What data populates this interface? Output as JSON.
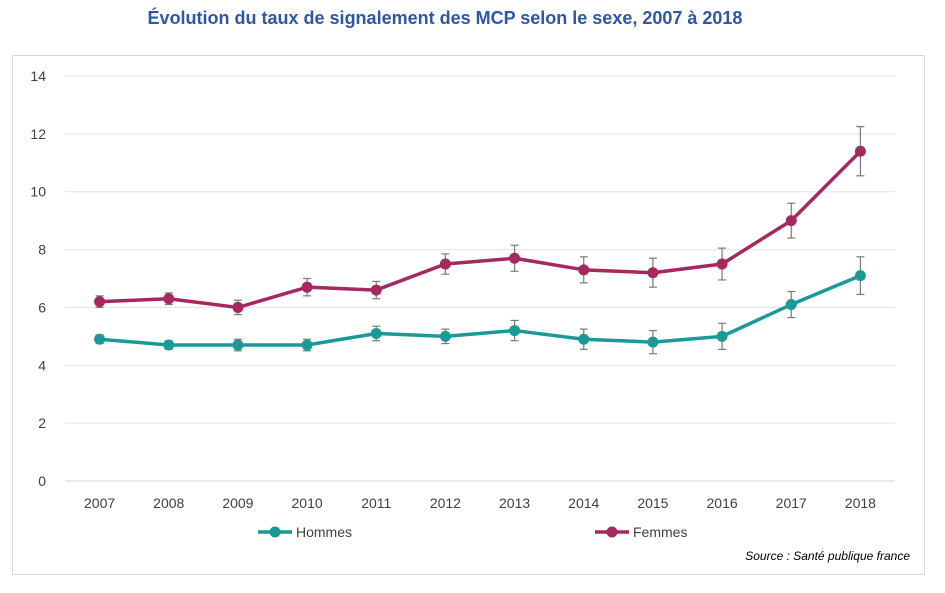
{
  "chart_data": {
    "type": "line",
    "title": "Évolution du taux de signalement des MCP selon le sexe, 2007 à 2018",
    "xlabel": "",
    "ylabel": "",
    "ylim": [
      0,
      14
    ],
    "yticks": [
      0,
      2,
      4,
      6,
      8,
      10,
      12,
      14
    ],
    "categories": [
      "2007",
      "2008",
      "2009",
      "2010",
      "2011",
      "2012",
      "2013",
      "2014",
      "2015",
      "2016",
      "2017",
      "2018"
    ],
    "grid": true,
    "legend_position": "bottom",
    "series": [
      {
        "name": "Hommes",
        "color": "#1a9a96",
        "values": [
          4.9,
          4.7,
          4.7,
          4.7,
          5.1,
          5.0,
          5.2,
          4.9,
          4.8,
          5.0,
          6.1,
          7.1
        ],
        "error": [
          0.15,
          0.15,
          0.2,
          0.2,
          0.25,
          0.25,
          0.35,
          0.35,
          0.4,
          0.45,
          0.45,
          0.65
        ]
      },
      {
        "name": "Femmes",
        "color": "#a5285f",
        "values": [
          6.2,
          6.3,
          6.0,
          6.7,
          6.6,
          7.5,
          7.7,
          7.3,
          7.2,
          7.5,
          9.0,
          11.4
        ],
        "error": [
          0.2,
          0.2,
          0.25,
          0.3,
          0.3,
          0.35,
          0.45,
          0.45,
          0.5,
          0.55,
          0.6,
          0.85
        ]
      }
    ],
    "source": "Source : Santé publique france"
  }
}
